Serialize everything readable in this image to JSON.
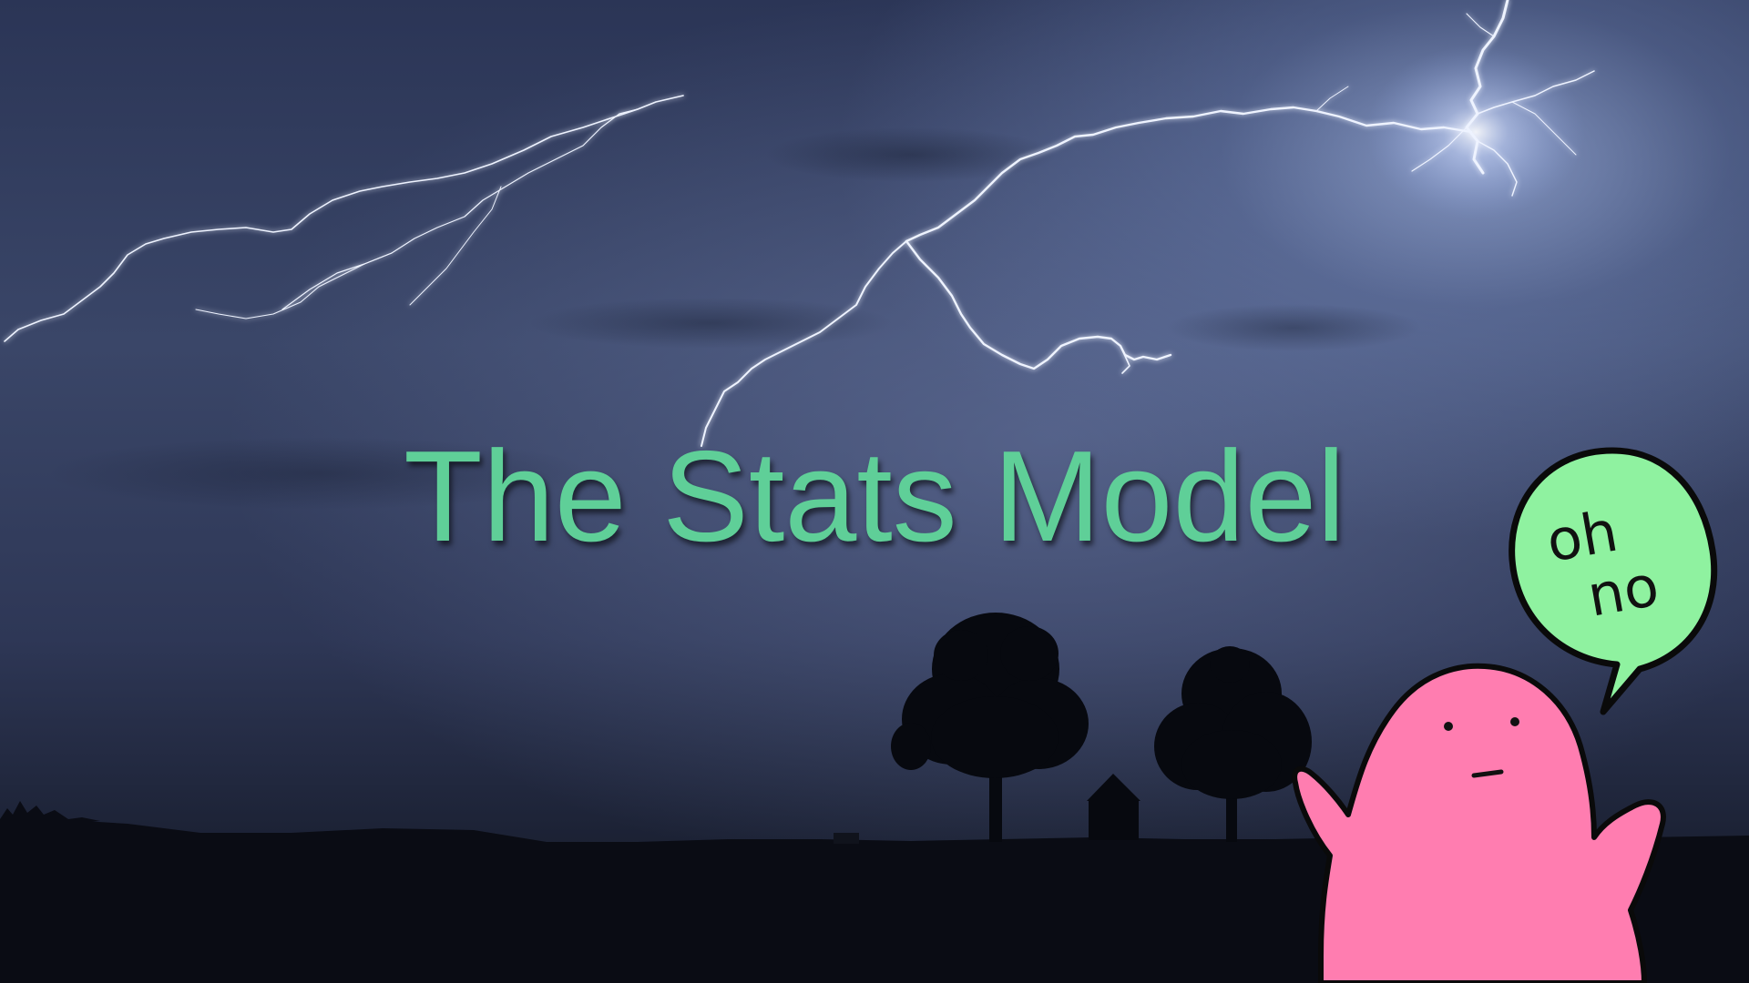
{
  "slide": {
    "title": "The Stats Model",
    "title_color": "#5fcf98"
  },
  "sticker": {
    "speech_text_line1": "oh",
    "speech_text_line2": "no",
    "blob_color": "#ff7db0",
    "bubble_color": "#8ff2a0"
  },
  "scene_colors": {
    "sky": "#2e3756",
    "ground": "#0a0c14",
    "lightning": "#eef3ff"
  },
  "icons": [
    "lightning-bolt-icon",
    "tree-icon",
    "house-icon",
    "blob-character-icon",
    "speech-bubble-icon"
  ]
}
